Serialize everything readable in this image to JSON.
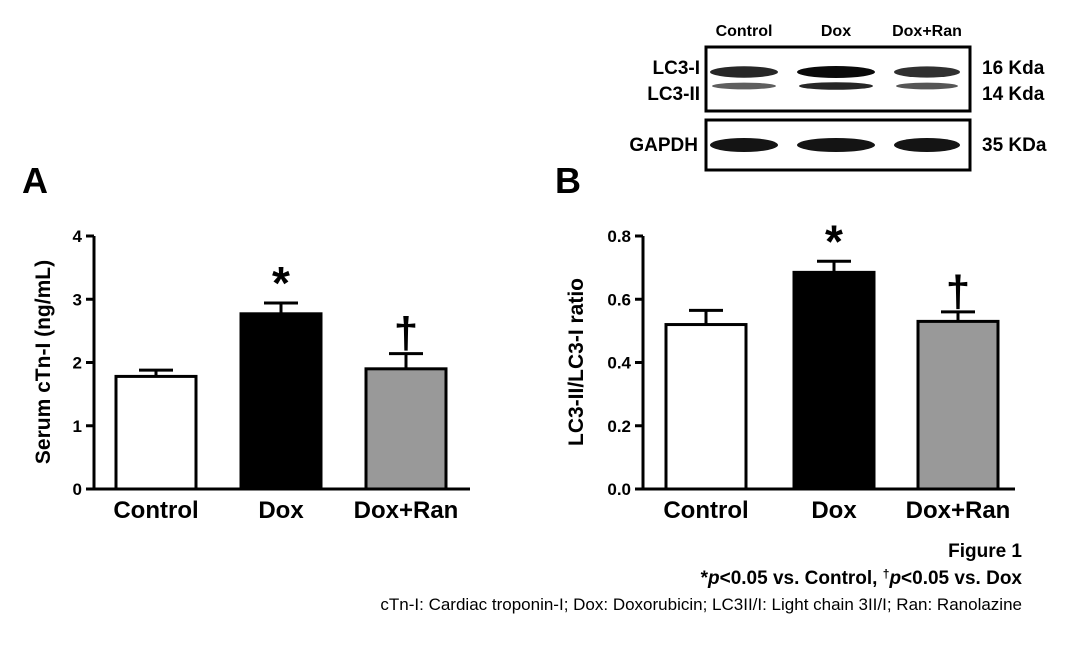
{
  "panelA": {
    "letter": "A",
    "chart_data": {
      "type": "bar",
      "title": "",
      "xlabel": "",
      "ylabel": "Serum cTn-I (ng/mL)",
      "categories": [
        "Control",
        "Dox",
        "Dox+Ran"
      ],
      "values": [
        1.78,
        2.77,
        1.9
      ],
      "errors": [
        0.1,
        0.17,
        0.24
      ],
      "bar_colors": [
        "#ffffff",
        "#000000",
        "#999999"
      ],
      "significance": [
        "",
        "*",
        "†"
      ],
      "ylim": [
        0,
        4
      ],
      "yticks": [
        0,
        1,
        2,
        3,
        4
      ],
      "ytick_labels": [
        "0",
        "1",
        "2",
        "3",
        "4"
      ]
    }
  },
  "panelB": {
    "letter": "B",
    "chart_data": {
      "type": "bar",
      "title": "",
      "xlabel": "",
      "ylabel": "LC3-II/LC3-I ratio",
      "categories": [
        "Control",
        "Dox",
        "Dox+Ran"
      ],
      "values": [
        0.52,
        0.685,
        0.53
      ],
      "errors": [
        0.045,
        0.035,
        0.03
      ],
      "bar_colors": [
        "#ffffff",
        "#000000",
        "#999999"
      ],
      "significance": [
        "",
        "*",
        "†"
      ],
      "ylim": [
        0,
        0.8
      ],
      "yticks": [
        0,
        0.2,
        0.4,
        0.6,
        0.8
      ],
      "ytick_labels": [
        "0.0",
        "0.2",
        "0.4",
        "0.6",
        "0.8"
      ]
    }
  },
  "blot": {
    "lanes": [
      "Control",
      "Dox",
      "Dox+Ran"
    ],
    "top_labels": [
      "LC3-I",
      "LC3-II"
    ],
    "top_sizes": [
      "16 Kda",
      "14 Kda"
    ],
    "bottom_label": "GAPDH",
    "bottom_size": "35 KDa",
    "intensity": {
      "lc3_i": [
        0.85,
        1.0,
        0.8
      ],
      "lc3_ii": [
        0.55,
        0.85,
        0.6
      ],
      "gapdh": [
        0.95,
        0.95,
        0.95
      ]
    }
  },
  "caption": {
    "title": "Figure 1",
    "sig_star": "*",
    "sig_p1": "p",
    "sig_text1": "<0.05 vs. Control, ",
    "sig_dagger": "†",
    "sig_p2": "p",
    "sig_text2": "<0.05 vs. Dox",
    "abbreviations": "cTn-I: Cardiac troponin-I; Dox: Doxorubicin; LC3II/I: Light chain 3II/I; Ran: Ranolazine"
  }
}
